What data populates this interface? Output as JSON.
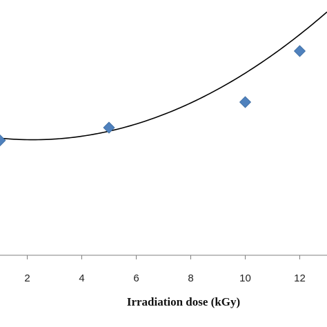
{
  "chart_data": {
    "type": "scatter",
    "title": "",
    "xlabel": "Irradiation dose (kGy)",
    "ylabel": "",
    "xlim": [
      1,
      13
    ],
    "ylim": [
      0,
      1
    ],
    "x_ticks": [
      2,
      4,
      6,
      8,
      10,
      12
    ],
    "x_tick_labels": [
      "2",
      "4",
      "6",
      "8",
      "10",
      "12"
    ],
    "grid": false,
    "series": [
      {
        "marker": "diamond",
        "color": "#4f81bd",
        "points": [
          {
            "x": 1,
            "y": 0.45
          },
          {
            "x": 5,
            "y": 0.5
          },
          {
            "x": 10,
            "y": 0.6
          },
          {
            "x": 12,
            "y": 0.8
          }
        ]
      }
    ],
    "trendline": {
      "type": "polynomial",
      "order": 2,
      "color": "#000000",
      "x_range": [
        1,
        13
      ],
      "coefficients": [
        0.4735,
        -0.019,
        0.0043
      ]
    }
  }
}
